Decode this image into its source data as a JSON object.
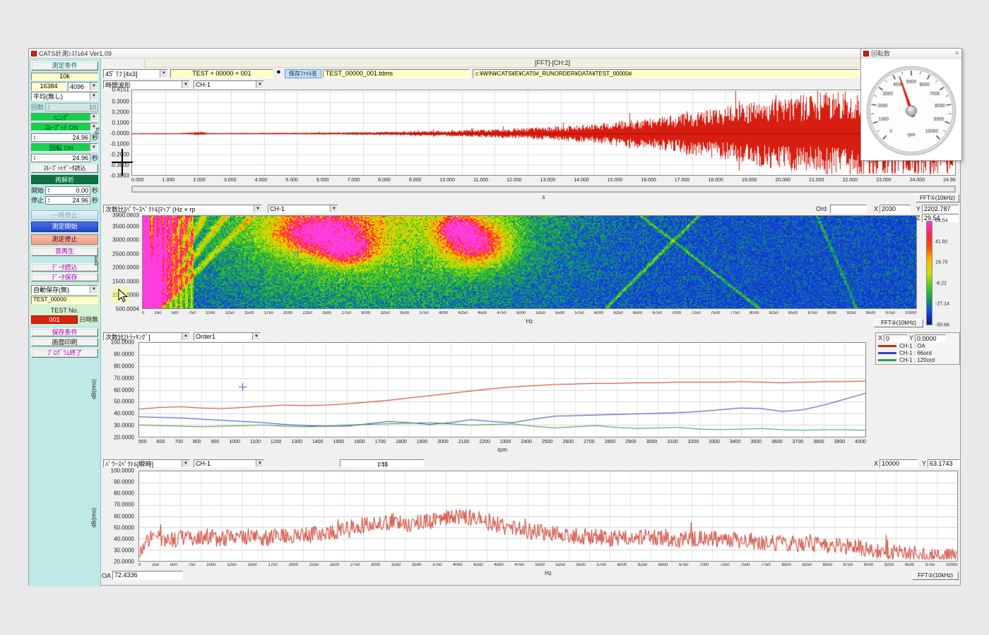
{
  "window": {
    "title": "CATS計測ｼｽﾃﾑ64 Ver1.09",
    "fft_caption": "[FFT]-[CH:2]"
  },
  "toolbar": {
    "layout_select": "45ﾟﾗﾌ [4x3]",
    "test_counter": "TEST + 00000 + 001",
    "record_icon": "●",
    "filename_label": "保存ﾌｧｲﾙ名",
    "filename": "TEST_00000_001.tdms",
    "save_path": "c:¥WIN¥CATS¥E¥CAT0#_RUNORDER¥DATA¥TEST_00000#"
  },
  "sidebar": {
    "measure_cond": "測定条件",
    "range": "10k",
    "samples": "16384",
    "lines": "4096",
    "average": "平均(無し)",
    "count_label": "回数",
    "count_value": "10",
    "window_fn": "ﾊﾆﾝｸﾞ",
    "throughput": "ｽﾙｰﾌﾟｯﾄ ON",
    "time1": "24.96",
    "rotation": "回転 ON",
    "time2": "24.96",
    "sec": "秒",
    "throughput_load": "ｽﾙｰﾌﾟｯﾄﾃﾞｰﾀ読込",
    "reanalyze": "再解析",
    "start_label": "開始",
    "start_value": "0.00",
    "stop_label": "停止",
    "stop_value": "24.96",
    "pause": "一時停止",
    "start_btn": "測定開始",
    "stop_btn": "測定停止",
    "sound": "音再生",
    "load": "ﾃﾞｰﾀ読込",
    "save": "ﾃﾞｰﾀ保存",
    "autosave": "自動保存(無)",
    "test_name": "TEST_00000",
    "test_no_label": "TEST No.",
    "test_no": "001",
    "datetime": "日時無",
    "save_cond": "保存条件",
    "print": "画面印刷",
    "exit": "ﾌﾟﾛｸﾞﾗﾑ終了"
  },
  "plot1": {
    "type_select": "時間波形",
    "channel_select": "CH-1",
    "ylabel": "Pa",
    "xunit": "s",
    "fft_button": "FFT①(10kHz)"
  },
  "plot2": {
    "type_select": "次数比[ﾊﾟﾜｰｽﾍﾟｸﾄﾙ]ﾏｯﾌﾟ(Hz × rp",
    "channel_select": "CH-1",
    "ord_label": "Ord",
    "ord_value": "",
    "x_label": "X",
    "x_value": "2030",
    "y_label": "Y",
    "y_value": "2202.787",
    "z_label": "Z",
    "z_value": "29.54",
    "ylabel": "rpm",
    "xunit": "Hz",
    "fft_button": "FFT②(10kHz)"
  },
  "plot3": {
    "type_select": "次数比[ﾄﾗｯｷﾝｸﾞ]",
    "order_select": "Order1",
    "x_label": "X",
    "x_value": "0",
    "y_label": "Y",
    "y_value": "0.0000",
    "ylabel": "dB(rms)",
    "xunit": "rpm"
  },
  "plot4": {
    "type_select": "ﾊﾟﾜｰｽﾍﾟｸﾄﾙ[瞬時]",
    "channel_select": "CH-1",
    "f_button": "F特",
    "x_label": "X",
    "x_value": "10000",
    "y_label": "Y",
    "y_value": "63.1743",
    "ylabel": "dB(rms)",
    "xunit": "Hz",
    "oa_label": "OA",
    "oa_value": "72.4336",
    "fft_button": "FFT②(10kHz)"
  },
  "gauge": {
    "title": "回転数",
    "close_icon": "✕",
    "unit": "rpm",
    "min": 0,
    "max": 10000,
    "major_step": 1000,
    "value": 4300,
    "needle_color": "#e01800"
  },
  "chart_data": [
    {
      "id": "time-waveform",
      "type": "line",
      "title": "時間波形 CH-1",
      "xlabel": "s",
      "ylabel": "Pa",
      "xlim": [
        0,
        24.96
      ],
      "ylim": [
        -0.3993,
        0.4151
      ],
      "x_tick_step": 1.0,
      "y_tick_labels": [
        "0.4151",
        "0.3000",
        "0.2000",
        "0.1000",
        "-0.0000",
        "-0.1000",
        "-0.2000",
        "-0.3000",
        "-0.3993"
      ],
      "color": "#d81e10",
      "note": "random acoustic noise, amplitude envelope grows with time (run-up recording)",
      "envelope": [
        [
          0,
          0.003
        ],
        [
          1.5,
          0.003
        ],
        [
          2.1,
          0.018
        ],
        [
          2.3,
          0.004
        ],
        [
          4,
          0.006
        ],
        [
          6,
          0.009
        ],
        [
          8,
          0.016
        ],
        [
          10,
          0.028
        ],
        [
          11.5,
          0.042
        ],
        [
          13,
          0.065
        ],
        [
          14,
          0.085
        ],
        [
          15,
          0.115
        ],
        [
          16,
          0.15
        ],
        [
          17,
          0.19
        ],
        [
          18,
          0.24
        ],
        [
          19,
          0.29
        ],
        [
          20,
          0.33
        ],
        [
          21,
          0.365
        ],
        [
          22,
          0.38
        ],
        [
          23,
          0.36
        ],
        [
          24,
          0.375
        ],
        [
          24.96,
          0.36
        ]
      ]
    },
    {
      "id": "order-map",
      "type": "heatmap",
      "title": "次数比[ﾊﾟﾜｰｽﾍﾟｸﾄﾙ]ﾏｯﾌﾟ",
      "xlabel": "Hz",
      "ylabel": "rpm",
      "xlim": [
        0,
        10000
      ],
      "x_tick_step": 250,
      "y_tick_labels": [
        "3900.0603",
        "3500.0000",
        "3000.0000",
        "2500.0000",
        "2000.0000",
        "1500.0000",
        "1000.0000",
        "500.0004"
      ],
      "ylim": [
        500.0004,
        3900.0603
      ],
      "colorbar_ticks": [
        "64.54",
        "41.92",
        "19.70",
        "-6.22",
        "-27.14",
        "-50.66"
      ],
      "cursor": {
        "x": "2030",
        "y": "2202.787",
        "z": "29.54"
      },
      "note": "blue background with green speckle; yellow/green band below 650 Hz with order-line fan; magenta hot spots near 2000-2700 Hz and 4000-4600 Hz at high rpm; faint diagonal lines near 6000-8000 Hz"
    },
    {
      "id": "order-tracking",
      "type": "line",
      "title": "次数比[ﾄﾗｯｷﾝｸﾞ] Order1",
      "xlabel": "rpm",
      "ylabel": "dB(rms)",
      "x_start": 500,
      "x_step": 100,
      "xlim": [
        500,
        4000
      ],
      "ylim": [
        20,
        100
      ],
      "series": [
        {
          "name": "CH-1 : OA",
          "color": "#cc2a14",
          "values": [
            43.5,
            45,
            45.5,
            44.5,
            44,
            45,
            46,
            47,
            46.5,
            47,
            48,
            49.5,
            51,
            53,
            55,
            57,
            59,
            61,
            62.5,
            63.5,
            64.5,
            65,
            65.5,
            65.5,
            66,
            66,
            66.5,
            66.5,
            66.5,
            67,
            66.5,
            66,
            66.5,
            67,
            67,
            67.5
          ]
        },
        {
          "name": "CH-1 : 66ord",
          "color": "#3340bb",
          "values": [
            37,
            36.5,
            36,
            35,
            34,
            33,
            32,
            30.5,
            29.5,
            29,
            29,
            31,
            33,
            32,
            30.5,
            32,
            34.5,
            33,
            32,
            35,
            37.5,
            38,
            38.5,
            39,
            39.5,
            40,
            40.5,
            41.5,
            43,
            44.5,
            44,
            41.5,
            43,
            47,
            52,
            57
          ]
        },
        {
          "name": "CH-1 : 120ord",
          "color": "#2a9946",
          "values": [
            30,
            29.5,
            29,
            28.5,
            29,
            29.5,
            30,
            29,
            28.5,
            29,
            30,
            30.5,
            31,
            31.5,
            32,
            31,
            30,
            30.5,
            31,
            29,
            27.5,
            28.5,
            29.5,
            28,
            27,
            27.5,
            28,
            26.5,
            26,
            26.5,
            27,
            26,
            25.5,
            26,
            26,
            25.5
          ]
        }
      ]
    },
    {
      "id": "power-spectrum",
      "type": "line",
      "title": "ﾊﾟﾜｰｽﾍﾟｸﾄﾙ[瞬時] CH-1",
      "xlabel": "Hz",
      "ylabel": "dB(rms)",
      "xlim": [
        0,
        10000
      ],
      "x_tick_step": 250,
      "ylim": [
        20,
        100
      ],
      "oa": "72.4336",
      "color": "#cc3322",
      "note": "spiky instantaneous spectrum, broad maximum near 3000-4300 Hz peaking ~68 dB, falling toward 10 kHz",
      "envelope": [
        [
          0,
          30
        ],
        [
          150,
          45
        ],
        [
          300,
          40
        ],
        [
          600,
          43
        ],
        [
          900,
          41
        ],
        [
          1200,
          44
        ],
        [
          1500,
          42
        ],
        [
          1800,
          44
        ],
        [
          2100,
          45
        ],
        [
          2400,
          47
        ],
        [
          2700,
          52
        ],
        [
          2900,
          56
        ],
        [
          3100,
          57
        ],
        [
          3300,
          55
        ],
        [
          3600,
          58
        ],
        [
          3900,
          62
        ],
        [
          4100,
          60
        ],
        [
          4300,
          55
        ],
        [
          4600,
          50
        ],
        [
          5000,
          46
        ],
        [
          5400,
          44
        ],
        [
          5800,
          42
        ],
        [
          6200,
          43
        ],
        [
          6600,
          41
        ],
        [
          7000,
          42
        ],
        [
          7400,
          40
        ],
        [
          7800,
          38
        ],
        [
          8200,
          36
        ],
        [
          8600,
          35
        ],
        [
          9000,
          31
        ],
        [
          9400,
          28
        ],
        [
          9700,
          26
        ],
        [
          10000,
          25
        ]
      ]
    }
  ]
}
